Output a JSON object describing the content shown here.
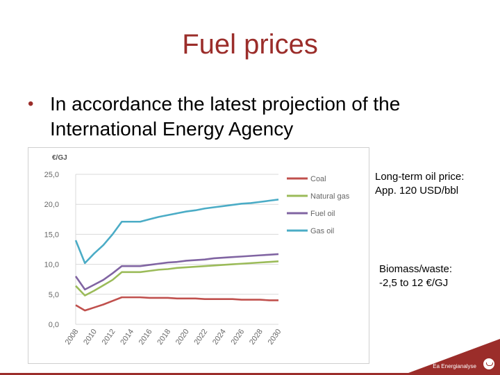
{
  "slide": {
    "title": "Fuel prices",
    "bullet": "In accordance the latest projection of the International Energy Agency"
  },
  "notes": {
    "oil_label": "Long-term oil price:",
    "oil_value": "App. 120 USD/bbl",
    "biomass_label": "Biomass/waste:",
    "biomass_value": "-2,5  to 12 €/GJ"
  },
  "footer": {
    "brand": "Ea Energianalyse"
  },
  "colors": {
    "title": "#9b2d2a",
    "coal": "#c0504d",
    "natural_gas": "#9bbb59",
    "fuel_oil": "#8064a2",
    "gas_oil": "#4bacc6"
  },
  "chart_data": {
    "type": "line",
    "unit_label": "€/GJ",
    "ylim": [
      0,
      25
    ],
    "yticks": [
      "0,0",
      "5,0",
      "10,0",
      "15,0",
      "20,0",
      "25,0"
    ],
    "grid": true,
    "legend_position": "right",
    "x": [
      2008,
      2009,
      2010,
      2011,
      2012,
      2013,
      2014,
      2015,
      2016,
      2017,
      2018,
      2019,
      2020,
      2021,
      2022,
      2023,
      2024,
      2025,
      2026,
      2027,
      2028,
      2029,
      2030
    ],
    "xticks": [
      "2008",
      "2010",
      "2012",
      "2014",
      "2016",
      "2018",
      "2020",
      "2022",
      "2024",
      "2026",
      "2028",
      "2030"
    ],
    "series": [
      {
        "name": "Coal",
        "color": "#c0504d",
        "values": [
          3.2,
          2.3,
          2.8,
          3.3,
          3.9,
          4.5,
          4.5,
          4.5,
          4.4,
          4.4,
          4.4,
          4.3,
          4.3,
          4.3,
          4.2,
          4.2,
          4.2,
          4.2,
          4.1,
          4.1,
          4.1,
          4.0,
          4.0
        ]
      },
      {
        "name": "Natural gas",
        "color": "#9bbb59",
        "values": [
          6.4,
          4.8,
          5.6,
          6.5,
          7.4,
          8.7,
          8.7,
          8.7,
          8.9,
          9.1,
          9.2,
          9.4,
          9.5,
          9.6,
          9.7,
          9.8,
          9.9,
          10.0,
          10.1,
          10.2,
          10.3,
          10.4,
          10.5
        ]
      },
      {
        "name": "Fuel oil",
        "color": "#8064a2",
        "values": [
          8.0,
          5.8,
          6.6,
          7.4,
          8.5,
          9.7,
          9.7,
          9.7,
          9.9,
          10.1,
          10.3,
          10.4,
          10.6,
          10.7,
          10.8,
          11.0,
          11.1,
          11.2,
          11.3,
          11.4,
          11.5,
          11.6,
          11.7
        ]
      },
      {
        "name": "Gas oil",
        "color": "#4bacc6",
        "values": [
          14.0,
          10.2,
          11.8,
          13.2,
          15.0,
          17.1,
          17.1,
          17.1,
          17.5,
          17.9,
          18.2,
          18.5,
          18.8,
          19.0,
          19.3,
          19.5,
          19.7,
          19.9,
          20.1,
          20.2,
          20.4,
          20.6,
          20.8
        ]
      }
    ]
  }
}
